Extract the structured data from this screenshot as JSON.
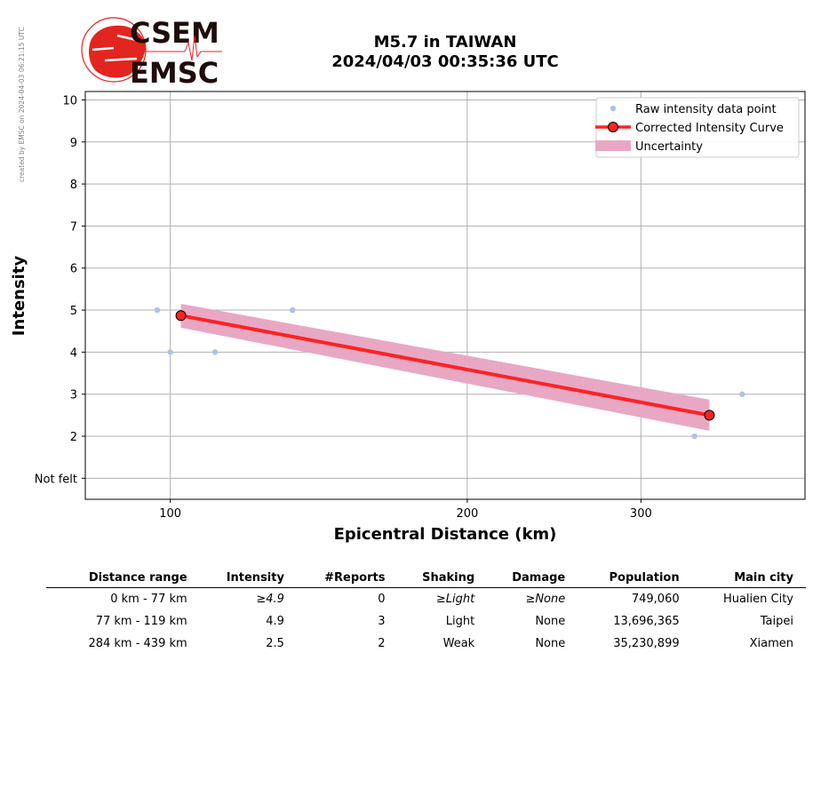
{
  "stamp": "created by EMSC on 2024-04-03 06:21:15 UTC",
  "logo": {
    "line1": "CSEM",
    "line2": "EMSC",
    "color_red": "#e3251f",
    "color_dark": "#1f0d0d"
  },
  "title": {
    "line1": "M5.7 in TAIWAN",
    "line2": "2024/04/03 00:35:36 UTC"
  },
  "chart_data": {
    "type": "scatter",
    "xlabel": "Epicentral Distance (km)",
    "ylabel": "Intensity",
    "x_scale": "log",
    "xlim": [
      82,
      440
    ],
    "ylim": [
      0.5,
      10.2
    ],
    "x_ticks": [
      100,
      200,
      300
    ],
    "y_ticks": [
      1,
      2,
      3,
      4,
      5,
      6,
      7,
      8,
      9,
      10
    ],
    "y_tick_labels": {
      "1": "Not felt"
    },
    "grid": true,
    "legend_position": "top-right",
    "series": [
      {
        "name": "Raw intensity data point",
        "kind": "points",
        "color": "#aec0e8",
        "points": [
          [
            97,
            5
          ],
          [
            100,
            4
          ],
          [
            111,
            4
          ],
          [
            133,
            5
          ],
          [
            340,
            2
          ],
          [
            380,
            3
          ]
        ]
      },
      {
        "name": "Corrected Intensity Curve",
        "kind": "line",
        "color": "#ff2222",
        "points": [
          [
            102.5,
            4.87
          ],
          [
            352,
            2.5
          ]
        ]
      },
      {
        "name": "Uncertainty",
        "kind": "band",
        "color": "#e8a8c4",
        "upper": [
          [
            102.5,
            5.15
          ],
          [
            352,
            2.87
          ]
        ],
        "lower": [
          [
            102.5,
            4.58
          ],
          [
            352,
            2.13
          ]
        ]
      }
    ]
  },
  "table": {
    "headers": [
      "Distance range",
      "Intensity",
      "#Reports",
      "Shaking",
      "Damage",
      "Population",
      "Main city"
    ],
    "rows": [
      {
        "distance": "0 km -   77 km",
        "intensity": "≥4.9",
        "reports": "0",
        "shaking": "≥Light",
        "damage": "≥None",
        "population": "749,060",
        "city": "Hualien City"
      },
      {
        "distance": "77 km -  119 km",
        "intensity": "4.9",
        "reports": "3",
        "shaking": "Light",
        "damage": "None",
        "population": "13,696,365",
        "city": "Taipei"
      },
      {
        "distance": "284 km -  439 km",
        "intensity": "2.5",
        "reports": "2",
        "shaking": "Weak",
        "damage": "None",
        "population": "35,230,899",
        "city": "Xiamen"
      }
    ]
  }
}
